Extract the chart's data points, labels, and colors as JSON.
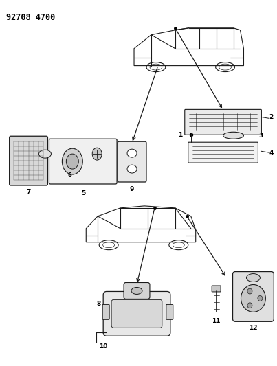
{
  "title_code": "92708 4700",
  "bg_color": "#ffffff",
  "line_color": "#000000",
  "fig_width": 4.03,
  "fig_height": 5.33,
  "dpi": 100
}
